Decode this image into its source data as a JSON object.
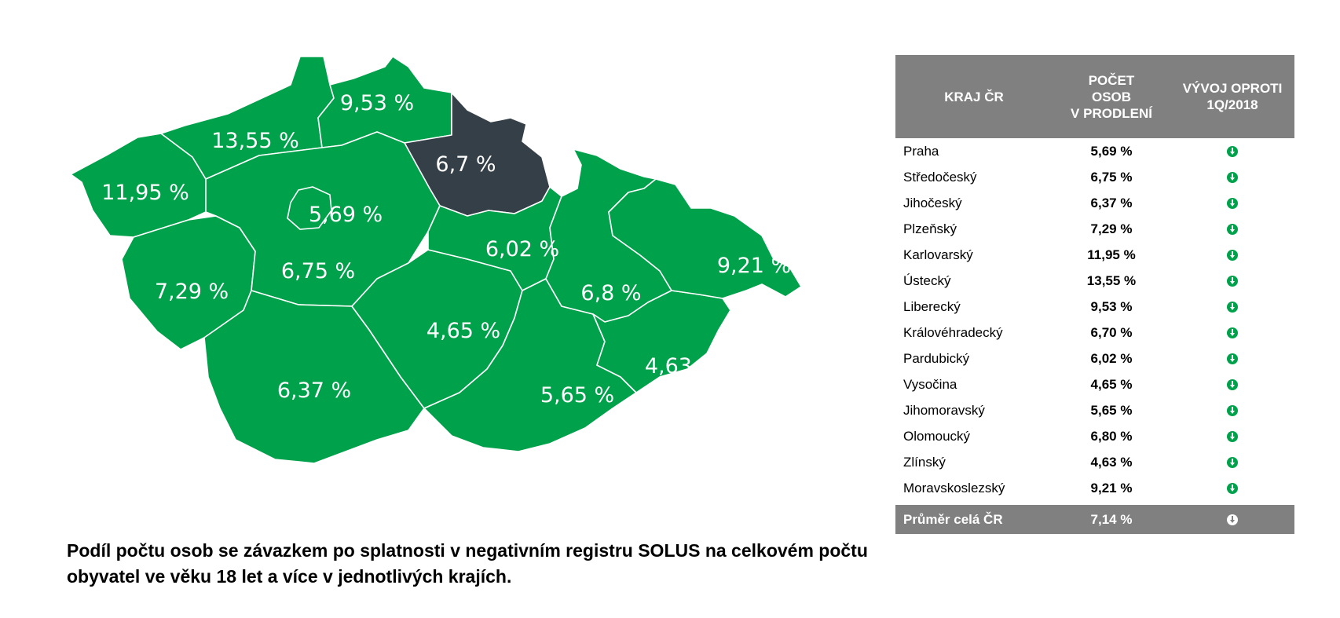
{
  "map": {
    "regions": [
      {
        "id": "karlovarsky",
        "label": "11,95 %"
      },
      {
        "id": "ustecky",
        "label": "13,55 %"
      },
      {
        "id": "liberecky",
        "label": "9,53 %"
      },
      {
        "id": "kralovehradecky",
        "label": "6,7 %"
      },
      {
        "id": "praha",
        "label": "5,69 %"
      },
      {
        "id": "stredocesky",
        "label": "6,75 %"
      },
      {
        "id": "plzensky",
        "label": "7,29 %"
      },
      {
        "id": "jihocesky",
        "label": "6,37 %"
      },
      {
        "id": "vysocina",
        "label": "4,65 %"
      },
      {
        "id": "pardubicky",
        "label": "6,02 %"
      },
      {
        "id": "jihomoravsky",
        "label": "5,65 %"
      },
      {
        "id": "olomoucky",
        "label": "6,8 %"
      },
      {
        "id": "zlinsky",
        "label": "4,63 %"
      },
      {
        "id": "moravskoslezsky",
        "label": "9,21 %"
      }
    ],
    "highlighted": "kralovehradecky",
    "colors": {
      "region": "#00a14b",
      "highlight": "#353f47",
      "border": "#ffffff"
    }
  },
  "table": {
    "headers": {
      "region": "KRAJ ČR",
      "count": [
        "POČET",
        "OSOB",
        "V PRODLENÍ"
      ],
      "trend": [
        "VÝVOJ OPROTI",
        "1Q/2018"
      ]
    },
    "rows": [
      {
        "name": "Praha",
        "value": "5,69 %",
        "trend": "down"
      },
      {
        "name": "Středočeský",
        "value": "6,75 %",
        "trend": "down"
      },
      {
        "name": "Jihočeský",
        "value": "6,37 %",
        "trend": "down"
      },
      {
        "name": "Plzeňský",
        "value": "7,29 %",
        "trend": "down"
      },
      {
        "name": "Karlovarský",
        "value": "11,95 %",
        "trend": "down"
      },
      {
        "name": "Ústecký",
        "value": "13,55 %",
        "trend": "down"
      },
      {
        "name": "Liberecký",
        "value": "9,53 %",
        "trend": "down"
      },
      {
        "name": "Královéhradecký",
        "value": "6,70 %",
        "trend": "down"
      },
      {
        "name": "Pardubický",
        "value": "6,02 %",
        "trend": "down"
      },
      {
        "name": "Vysočina",
        "value": "4,65 %",
        "trend": "down"
      },
      {
        "name": "Jihomoravský",
        "value": "5,65 %",
        "trend": "down"
      },
      {
        "name": "Olomoucký",
        "value": "6,80 %",
        "trend": "down"
      },
      {
        "name": "Zlínský",
        "value": "4,63 %",
        "trend": "down"
      },
      {
        "name": "Moravskoslezský",
        "value": "9,21 %",
        "trend": "down"
      }
    ],
    "average": {
      "name": "Průměr celá ČR",
      "value": "7,14 %",
      "trend": "down"
    },
    "colors": {
      "header_bg": "#808080",
      "icon": "#00a14b"
    }
  },
  "caption": "Podíl počtu osob se závazkem po splatnosti v negativním registru SOLUS na celkovém počtu obyvatel ve věku 18 let a více v jednotlivých krajích."
}
